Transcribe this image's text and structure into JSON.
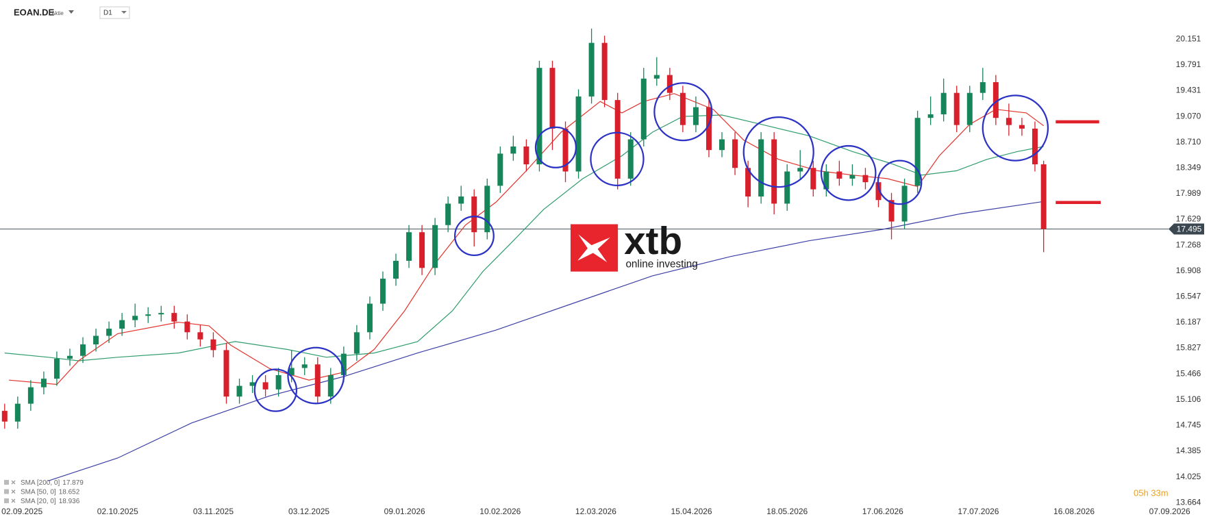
{
  "chart_data": {
    "type": "candlestick",
    "symbol": "EOAN.DE",
    "instrument_type": "Aktie",
    "timeframe": "D1",
    "x": [
      0,
      3,
      6,
      9,
      12,
      15,
      18,
      21,
      24,
      27,
      30,
      33,
      36,
      39,
      42,
      45,
      48,
      51,
      54,
      57,
      60,
      63,
      66,
      69,
      72,
      75,
      78,
      81,
      84,
      87,
      90,
      93,
      96,
      99,
      102,
      105,
      108,
      111,
      114,
      117,
      120,
      123,
      126,
      129,
      132,
      135,
      138,
      141,
      144,
      147,
      150,
      153,
      156,
      159,
      162,
      165,
      168,
      171,
      174,
      177,
      180,
      183,
      186,
      189,
      192,
      195,
      198,
      201,
      204,
      207,
      210,
      213,
      216,
      219,
      222,
      225,
      228,
      231,
      234,
      237,
      239
    ],
    "open": [
      14.95,
      14.8,
      15.05,
      15.28,
      15.4,
      15.68,
      15.72,
      15.88,
      16.0,
      16.1,
      16.22,
      16.28,
      16.3,
      16.32,
      16.2,
      16.05,
      15.95,
      15.8,
      15.15,
      15.3,
      15.35,
      15.25,
      15.45,
      15.55,
      15.6,
      15.15,
      15.45,
      15.75,
      16.05,
      16.45,
      16.8,
      17.05,
      17.45,
      16.95,
      17.55,
      17.85,
      17.95,
      17.45,
      18.1,
      18.55,
      18.65,
      18.4,
      19.75,
      18.9,
      18.3,
      19.35,
      20.1,
      19.3,
      18.2,
      18.75,
      19.6,
      19.65,
      19.4,
      18.95,
      19.2,
      18.6,
      18.75,
      18.35,
      17.95,
      18.75,
      17.85,
      18.3,
      18.35,
      18.05,
      18.3,
      18.2,
      18.25,
      18.15,
      17.9,
      17.6,
      18.1,
      19.05,
      19.1,
      19.4,
      18.95,
      19.4,
      19.55,
      19.05,
      18.95,
      18.9,
      18.4
    ],
    "high": [
      15.05,
      15.15,
      15.38,
      15.5,
      15.78,
      15.82,
      15.98,
      16.1,
      16.2,
      16.32,
      16.45,
      16.4,
      16.42,
      16.42,
      16.3,
      16.15,
      16.05,
      15.9,
      15.4,
      15.45,
      15.45,
      15.55,
      15.8,
      15.7,
      15.7,
      15.55,
      15.85,
      16.15,
      16.55,
      16.9,
      17.15,
      17.55,
      17.55,
      17.65,
      17.95,
      18.1,
      18.05,
      18.2,
      18.65,
      18.8,
      18.75,
      19.85,
      19.85,
      19.0,
      19.45,
      20.3,
      20.2,
      19.4,
      18.85,
      19.75,
      19.9,
      19.75,
      19.5,
      19.35,
      19.3,
      18.85,
      18.85,
      18.45,
      18.85,
      18.85,
      18.4,
      18.6,
      18.45,
      18.4,
      18.45,
      18.4,
      18.35,
      18.25,
      18.0,
      18.2,
      19.15,
      19.35,
      19.6,
      19.5,
      19.5,
      19.75,
      19.65,
      19.25,
      19.05,
      19.0,
      18.45
    ],
    "low": [
      14.7,
      14.7,
      14.95,
      15.18,
      15.3,
      15.58,
      15.62,
      15.78,
      15.9,
      16.0,
      16.12,
      16.18,
      16.2,
      16.1,
      15.95,
      15.85,
      15.7,
      15.05,
      15.05,
      15.2,
      15.15,
      15.15,
      15.35,
      15.45,
      15.05,
      15.05,
      15.35,
      15.65,
      15.95,
      16.35,
      16.7,
      16.95,
      16.85,
      16.85,
      17.45,
      17.75,
      17.25,
      17.35,
      18.0,
      18.45,
      18.3,
      18.3,
      18.6,
      18.15,
      18.2,
      19.25,
      19.2,
      18.05,
      18.1,
      18.65,
      19.5,
      19.3,
      18.85,
      18.85,
      18.5,
      18.5,
      18.25,
      17.8,
      17.85,
      17.7,
      17.75,
      18.2,
      17.95,
      17.95,
      18.1,
      18.1,
      18.05,
      17.8,
      17.35,
      17.5,
      18.0,
      18.95,
      19.0,
      18.85,
      18.85,
      19.3,
      18.95,
      18.8,
      18.8,
      18.3,
      17.17
    ],
    "close": [
      14.8,
      15.05,
      15.28,
      15.4,
      15.68,
      15.72,
      15.88,
      16.0,
      16.1,
      16.22,
      16.28,
      16.3,
      16.32,
      16.2,
      16.05,
      15.95,
      15.8,
      15.15,
      15.3,
      15.35,
      15.25,
      15.45,
      15.55,
      15.6,
      15.15,
      15.45,
      15.75,
      16.05,
      16.45,
      16.8,
      17.05,
      17.45,
      16.95,
      17.55,
      17.85,
      17.95,
      17.45,
      18.1,
      18.55,
      18.65,
      18.4,
      19.75,
      18.9,
      18.3,
      19.35,
      20.1,
      19.3,
      18.2,
      18.75,
      19.6,
      19.65,
      19.4,
      18.95,
      19.2,
      18.6,
      18.75,
      18.35,
      17.95,
      18.75,
      17.85,
      18.3,
      18.35,
      18.05,
      18.3,
      18.2,
      18.25,
      18.15,
      17.9,
      17.6,
      18.1,
      19.05,
      19.1,
      19.4,
      18.95,
      19.4,
      19.55,
      19.05,
      18.95,
      18.9,
      18.4,
      17.495
    ],
    "up_color": "#17855a",
    "down_color": "#d7202b",
    "xlim": [
      -1,
      270
    ],
    "ylim": [
      13.6,
      20.7
    ],
    "xticks": [
      {
        "value": 4,
        "label": "02.09.2025"
      },
      {
        "value": 26,
        "label": "02.10.2025"
      },
      {
        "value": 48,
        "label": "03.11.2025"
      },
      {
        "value": 70,
        "label": "03.12.2025"
      },
      {
        "value": 92,
        "label": "09.01.2026"
      },
      {
        "value": 114,
        "label": "10.02.2026"
      },
      {
        "value": 136,
        "label": "12.03.2026"
      },
      {
        "value": 158,
        "label": "15.04.2026"
      },
      {
        "value": 180,
        "label": "18.05.2026"
      },
      {
        "value": 202,
        "label": "17.06.2026"
      },
      {
        "value": 224,
        "label": "17.07.2026"
      },
      {
        "value": 246,
        "label": "16.08.2026"
      },
      {
        "value": 268,
        "label": "07.09.2026"
      }
    ],
    "yticks": [
      20.151,
      19.791,
      19.431,
      {
        "value": 19.07,
        "label": "19.070"
      },
      {
        "value": 18.71,
        "label": "18.710"
      },
      18.349,
      17.989,
      17.629,
      17.268,
      16.908,
      16.547,
      16.187,
      15.827,
      15.466,
      15.106,
      14.745,
      14.385,
      14.025,
      13.664
    ],
    "grid": false,
    "current_price": 17.495,
    "indicators": [
      {
        "name": "SMA [200, 0]",
        "last_value": 17.879,
        "color": "#3c3fa6",
        "x": [
          10,
          26,
          43,
          61,
          78,
          95,
          113,
          131,
          149,
          167,
          185,
          202,
          220,
          239
        ],
        "values": [
          13.97,
          14.29,
          14.78,
          15.16,
          15.43,
          15.76,
          16.08,
          16.46,
          16.84,
          17.11,
          17.33,
          17.49,
          17.71,
          17.88
        ]
      },
      {
        "name": "SMA [50, 0]",
        "last_value": 18.652,
        "color": "#2e9c6c",
        "x": [
          0,
          10,
          17,
          26,
          40,
          53,
          65,
          74,
          85,
          95,
          103,
          110,
          117,
          124,
          133,
          142,
          149,
          156,
          165,
          174,
          185,
          195,
          204,
          211,
          219,
          226,
          233,
          239
        ],
        "values": [
          15.76,
          15.7,
          15.65,
          15.7,
          15.76,
          15.92,
          15.81,
          15.7,
          15.76,
          15.92,
          16.35,
          16.9,
          17.33,
          17.77,
          18.2,
          18.52,
          18.85,
          19.07,
          19.09,
          18.96,
          18.8,
          18.58,
          18.41,
          18.25,
          18.31,
          18.47,
          18.58,
          18.65
        ]
      },
      {
        "name": "SMA [20, 0]",
        "last_value": 18.936,
        "color": "#e2322b",
        "x": [
          1,
          12,
          17,
          26,
          40,
          47,
          52,
          61,
          70,
          78,
          85,
          92,
          99,
          106,
          113,
          120,
          128,
          137,
          142,
          147,
          154,
          163,
          170,
          178,
          187,
          195,
          203,
          210,
          215,
          222,
          228,
          235,
          239
        ],
        "values": [
          15.38,
          15.32,
          15.65,
          16.03,
          16.19,
          16.14,
          15.87,
          15.54,
          15.38,
          15.49,
          15.81,
          16.35,
          17.01,
          17.55,
          17.87,
          18.31,
          18.85,
          19.28,
          19.12,
          19.28,
          19.39,
          19.17,
          18.74,
          18.47,
          18.31,
          18.25,
          18.2,
          18.09,
          18.52,
          18.96,
          19.17,
          19.12,
          18.94
        ]
      }
    ],
    "countdown": "05h 33m"
  },
  "watermark": {
    "brand": "xtb",
    "tagline": "online investing"
  }
}
